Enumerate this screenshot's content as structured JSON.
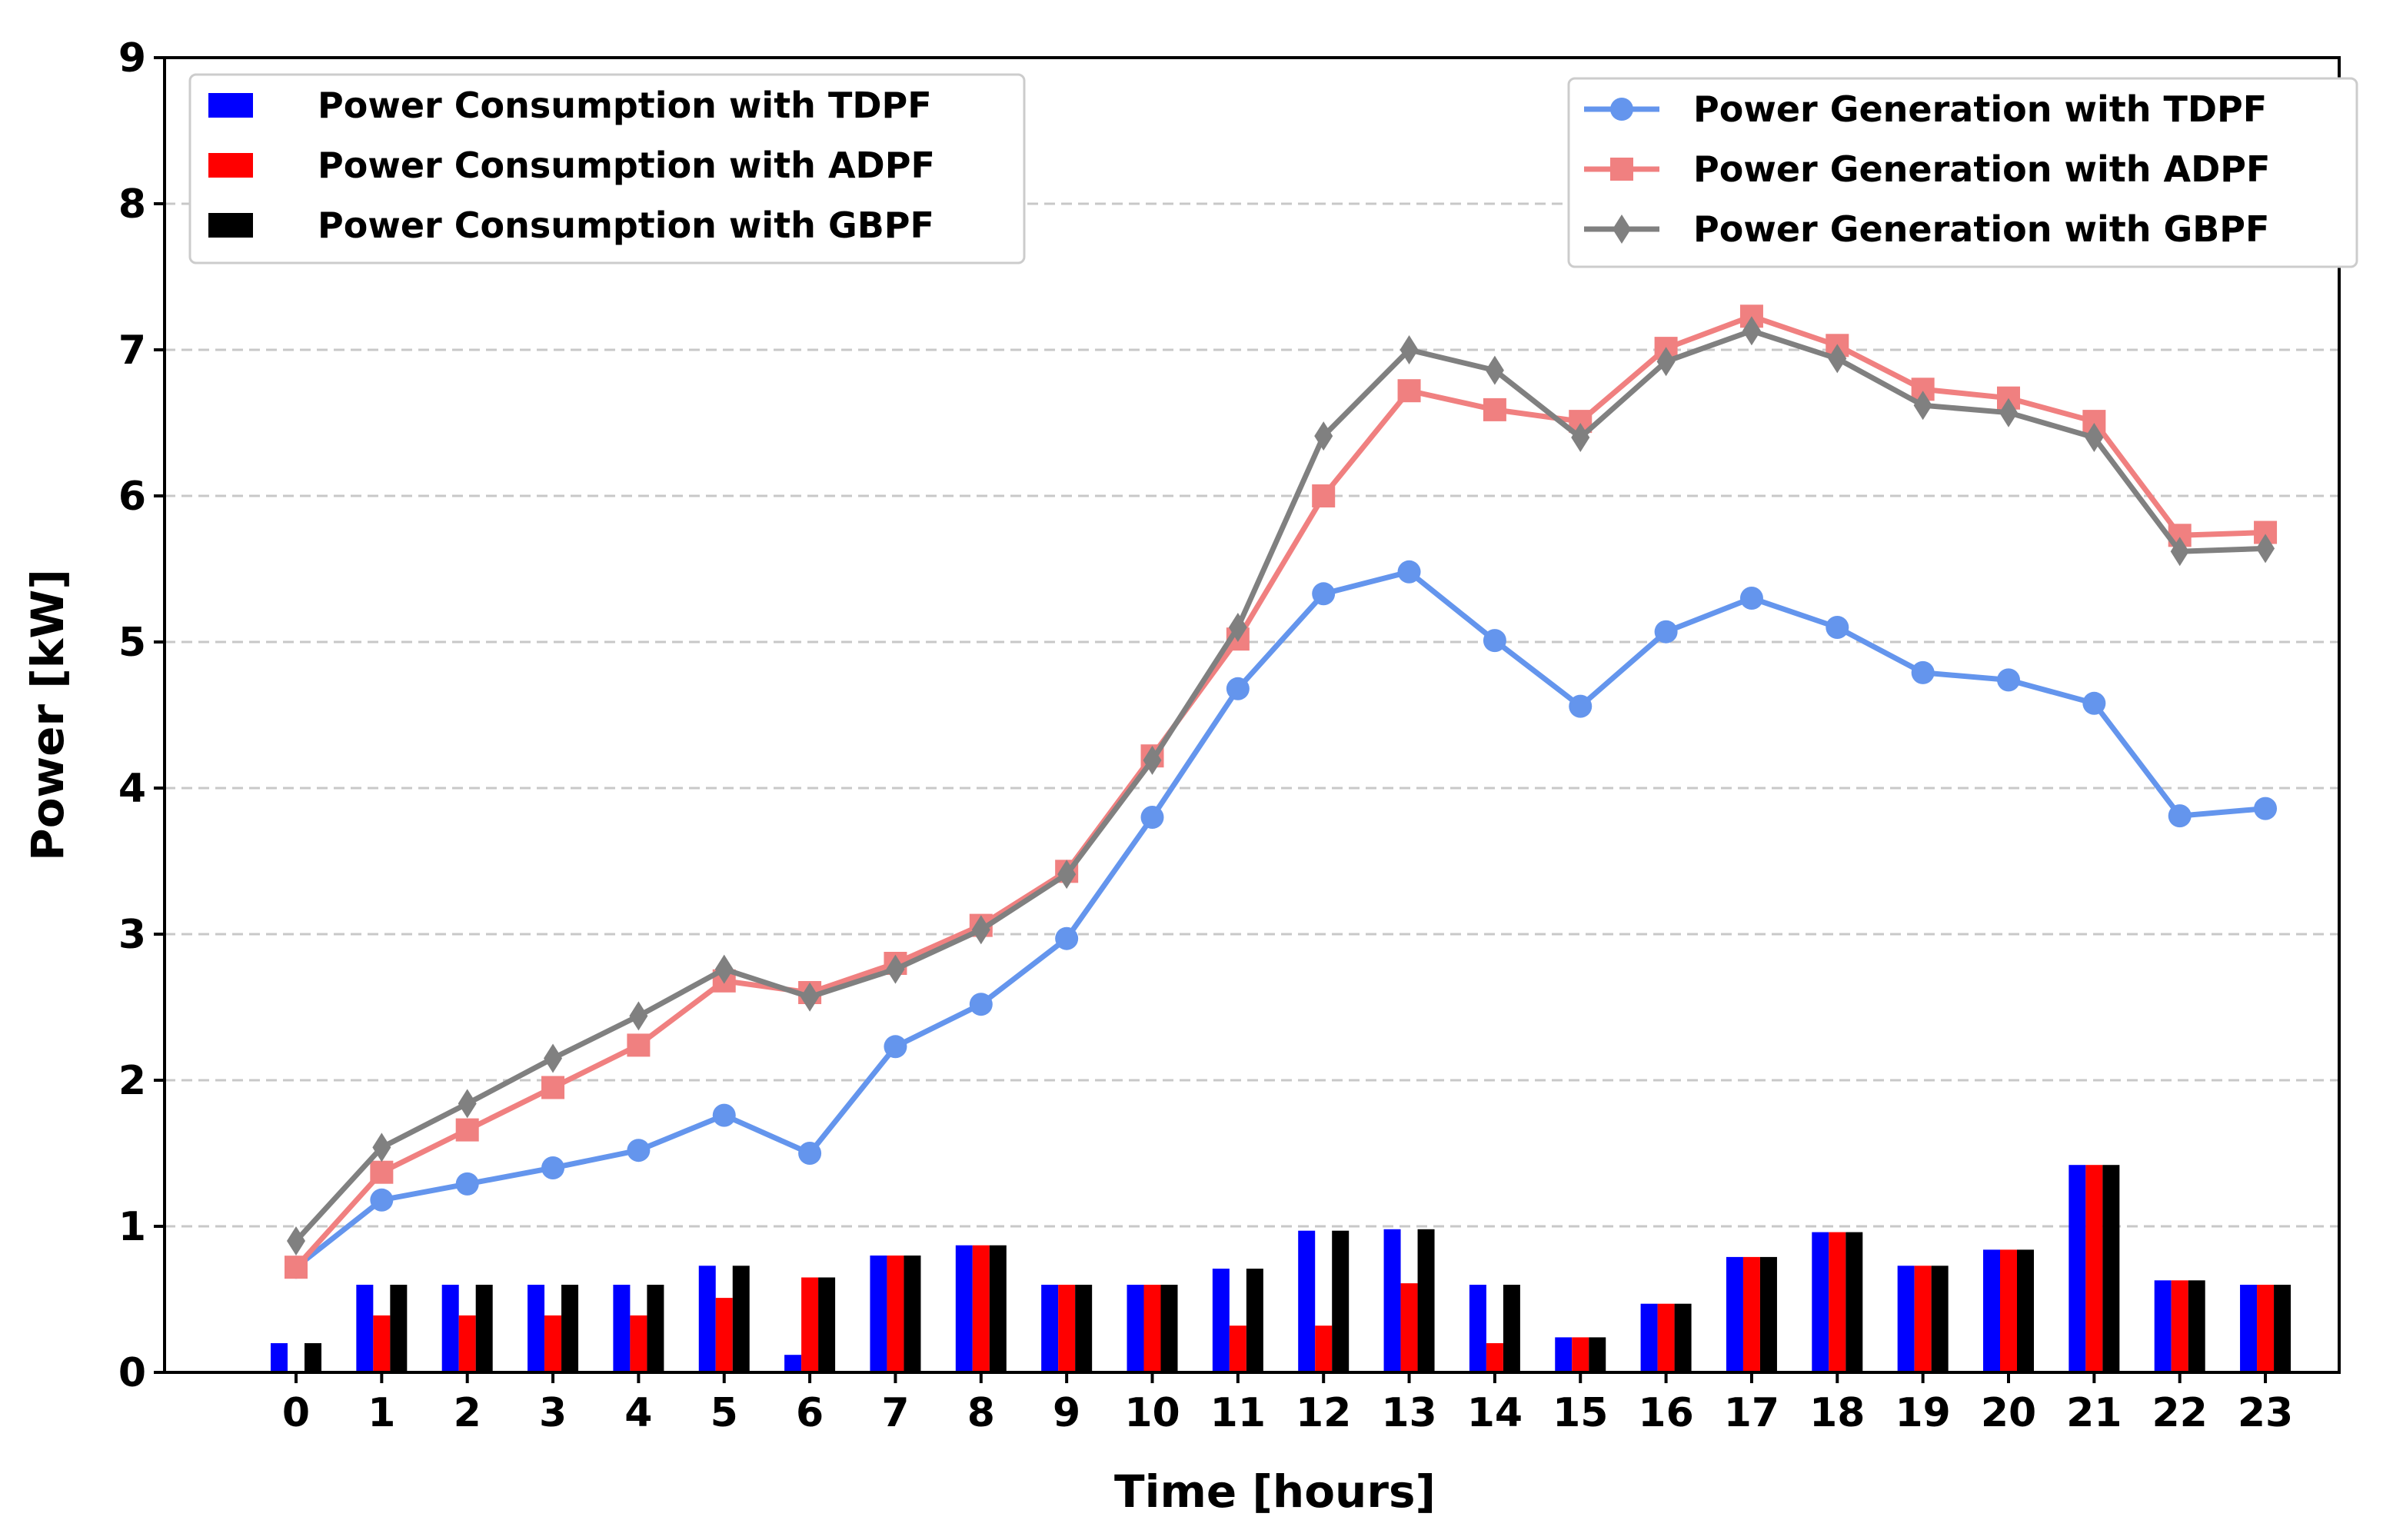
{
  "chart_data": {
    "type": "bar+line",
    "xlabel": "Time [hours]",
    "ylabel": "Power [kW]",
    "ylim": [
      0,
      9
    ],
    "yticks": [
      0,
      1,
      2,
      3,
      4,
      5,
      6,
      7,
      8,
      9
    ],
    "categories": [
      "0",
      "1",
      "2",
      "3",
      "4",
      "5",
      "6",
      "7",
      "8",
      "9",
      "10",
      "11",
      "12",
      "13",
      "14",
      "15",
      "16",
      "17",
      "18",
      "19",
      "20",
      "21",
      "22",
      "23"
    ],
    "grid": "horizontal dashed",
    "bar_series": [
      {
        "name": "Power Consumption with TDPF",
        "color": "#0000ff",
        "values": [
          0.2,
          0.6,
          0.6,
          0.6,
          0.6,
          0.73,
          0.12,
          0.8,
          0.87,
          0.6,
          0.6,
          0.71,
          0.97,
          0.98,
          0.6,
          0.24,
          0.47,
          0.79,
          0.96,
          0.73,
          0.84,
          1.42,
          0.63,
          0.6
        ]
      },
      {
        "name": "Power Consumption with ADPF",
        "color": "#ff0000",
        "values": [
          0.0,
          0.39,
          0.39,
          0.39,
          0.39,
          0.51,
          0.65,
          0.8,
          0.87,
          0.6,
          0.6,
          0.32,
          0.32,
          0.61,
          0.2,
          0.24,
          0.47,
          0.79,
          0.96,
          0.73,
          0.84,
          1.42,
          0.63,
          0.6
        ]
      },
      {
        "name": "Power Consumption with GBPF",
        "color": "#000000",
        "values": [
          0.2,
          0.6,
          0.6,
          0.6,
          0.6,
          0.73,
          0.65,
          0.8,
          0.87,
          0.6,
          0.6,
          0.71,
          0.97,
          0.98,
          0.6,
          0.24,
          0.47,
          0.79,
          0.96,
          0.73,
          0.84,
          1.42,
          0.63,
          0.6
        ]
      }
    ],
    "line_series": [
      {
        "name": "Power Generation with TDPF",
        "color": "#6495ed",
        "marker": "circle",
        "values": [
          0.72,
          1.18,
          1.29,
          1.4,
          1.52,
          1.76,
          1.5,
          2.23,
          2.52,
          2.97,
          3.8,
          4.68,
          5.33,
          5.48,
          5.01,
          4.56,
          5.07,
          5.3,
          5.1,
          4.79,
          4.74,
          4.58,
          3.81,
          3.86
        ]
      },
      {
        "name": "Power Generation with ADPF",
        "color": "#f08080",
        "marker": "square",
        "values": [
          0.72,
          1.37,
          1.66,
          1.95,
          2.24,
          2.68,
          2.6,
          2.8,
          3.06,
          3.43,
          4.22,
          5.02,
          6.0,
          6.72,
          6.59,
          6.51,
          7.01,
          7.23,
          7.03,
          6.73,
          6.67,
          6.51,
          5.73,
          5.75
        ]
      },
      {
        "name": "Power Generation with GBPF",
        "color": "#808080",
        "marker": "diamond",
        "values": [
          0.9,
          1.54,
          1.84,
          2.15,
          2.44,
          2.76,
          2.57,
          2.76,
          3.03,
          3.41,
          4.19,
          5.1,
          6.41,
          7.0,
          6.86,
          6.4,
          6.92,
          7.13,
          6.94,
          6.62,
          6.57,
          6.4,
          5.62,
          5.64
        ]
      }
    ],
    "legends": {
      "left_placement": "top-left",
      "right_placement": "top-right"
    }
  }
}
